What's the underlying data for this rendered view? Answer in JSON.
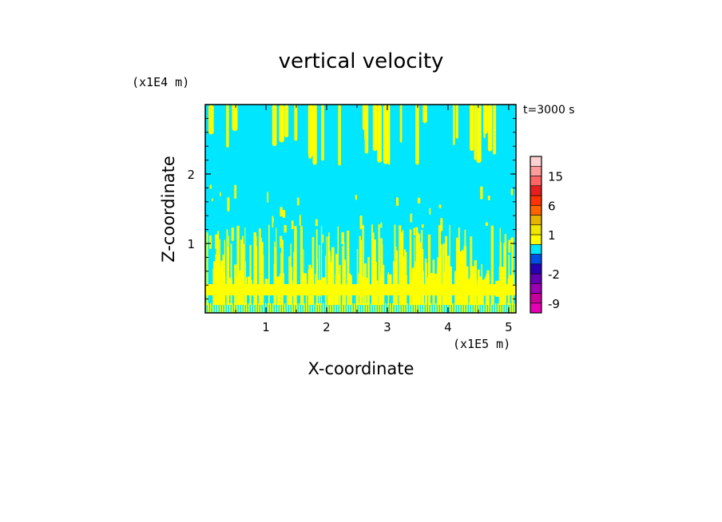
{
  "chart_data": {
    "type": "heatmap",
    "title": "vertical velocity",
    "xlabel": "X-coordinate",
    "ylabel": "Z-coordinate",
    "x_scale_note": "(x1E5 m)",
    "y_scale_note": "(x1E4 m)",
    "time_label": "t=3000 s",
    "xlim": [
      0,
      5.12
    ],
    "ylim": [
      0,
      3.0
    ],
    "x_ticks": [
      "1",
      "2",
      "3",
      "4",
      "5"
    ],
    "x_tick_values": [
      1,
      2,
      3,
      4,
      5
    ],
    "y_ticks": [
      "1",
      "2"
    ],
    "y_tick_values": [
      1,
      2
    ],
    "colorbar": {
      "levels": [
        -12,
        -9,
        -6,
        -4,
        -2,
        -1,
        0,
        0.5,
        1,
        2,
        4,
        6,
        9,
        12,
        15,
        18,
        24
      ],
      "colors": [
        "#e600b4",
        "#c8009b",
        "#9b00b4",
        "#6400b4",
        "#2800b4",
        "#0050e6",
        "#00e6ff",
        "#ffff00",
        "#f0e600",
        "#e6b400",
        "#ff6400",
        "#ff3200",
        "#e61e1e",
        "#ff6464",
        "#ff9b9b",
        "#ffd2d2"
      ],
      "tick_labels": [
        "15",
        "6",
        "1",
        "-2",
        "-9"
      ],
      "tick_values": [
        15,
        6,
        1,
        -2,
        -9
      ]
    },
    "background_color": "#00e6ff",
    "updraft_color": "#ffff00"
  }
}
